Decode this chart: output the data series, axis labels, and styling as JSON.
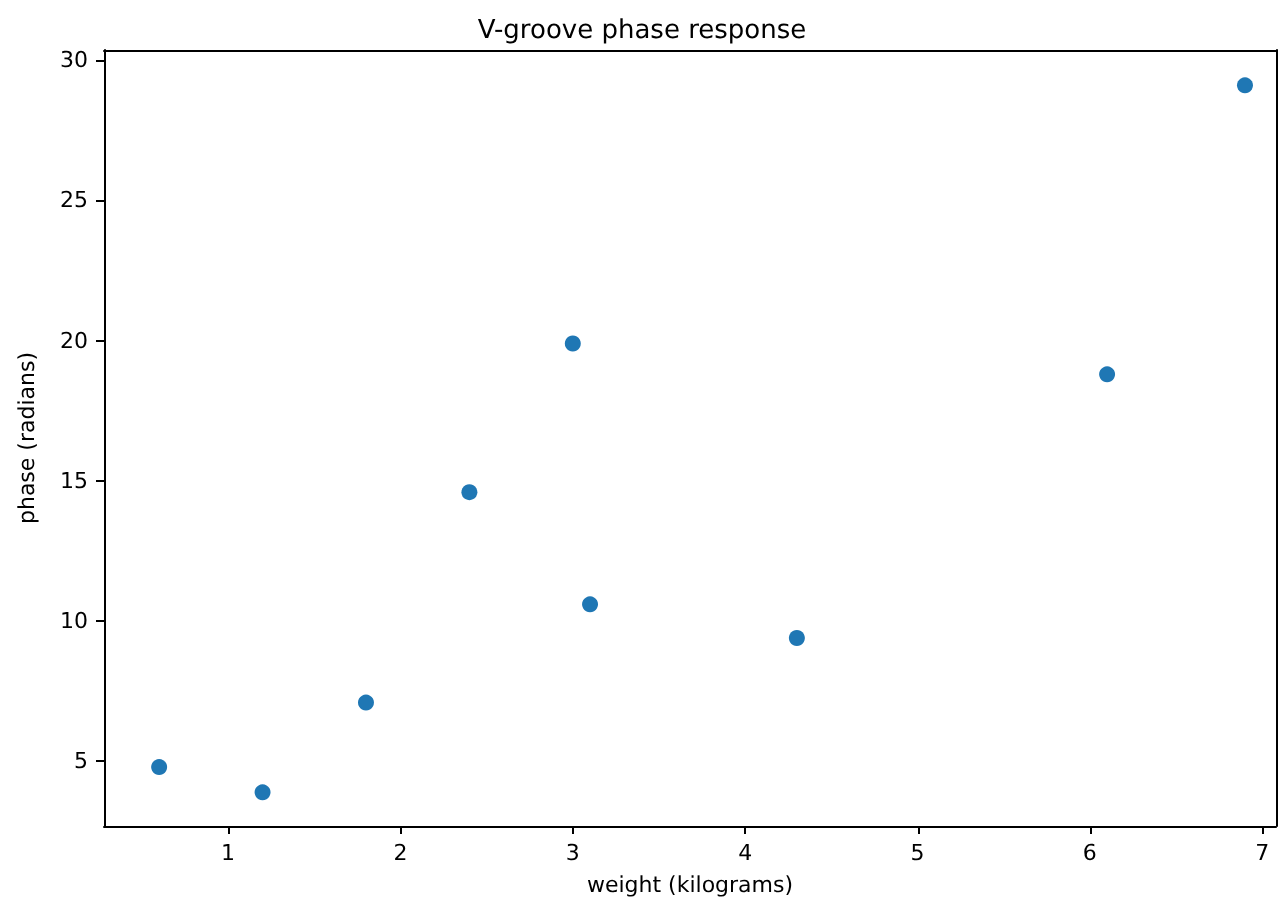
{
  "chart_data": {
    "type": "scatter",
    "title": "V-groove phase response",
    "xlabel": "weight (kilograms)",
    "ylabel": "phase (radians)",
    "x": [
      0.6,
      1.2,
      1.8,
      2.4,
      3.0,
      3.1,
      4.3,
      6.1,
      6.9
    ],
    "series": [
      {
        "color": "#1f77b4",
        "values": [
          4.8,
          3.9,
          7.1,
          14.6,
          19.9,
          10.6,
          9.4,
          18.8,
          29.1
        ]
      }
    ],
    "xlim": [
      0.28,
      7.08
    ],
    "xticks": [
      1,
      2,
      3,
      4,
      5,
      6,
      7
    ],
    "ylim": [
      2.7,
      30.36
    ],
    "yticks": [
      5,
      10,
      15,
      20,
      25,
      30
    ],
    "grid": false,
    "marker": "circle"
  }
}
